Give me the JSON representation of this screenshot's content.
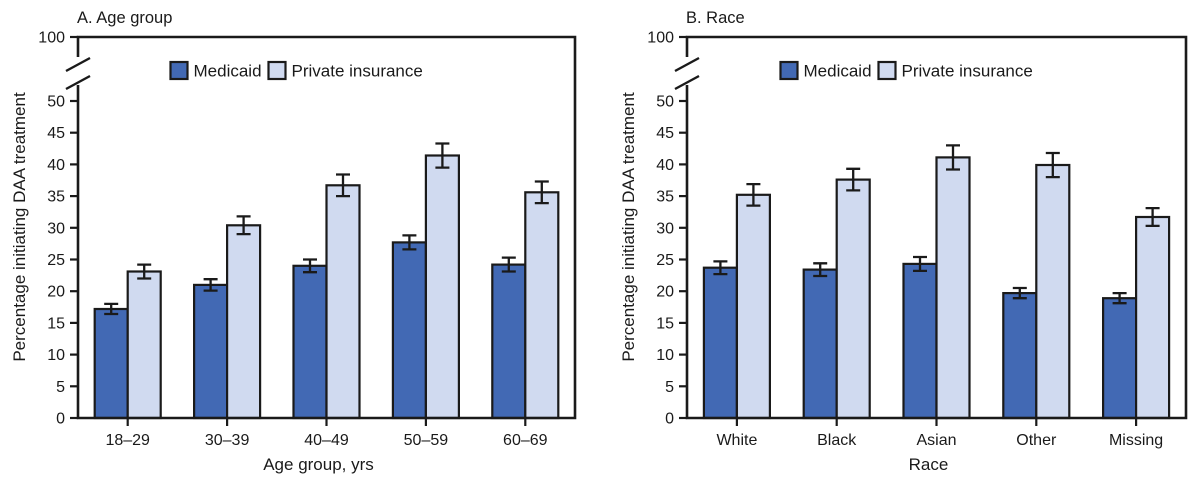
{
  "colors": {
    "medicaid": "#4269b4",
    "private_insurance": "#d0daf0",
    "axis": "#1a1a1a",
    "background": "#ffffff"
  },
  "chart_data": [
    {
      "type": "bar",
      "title": "A. Age group",
      "xlabel": "Age group, yrs",
      "ylabel": "Percentage initiating DAA treatment",
      "categories": [
        "18–29",
        "30–39",
        "40–49",
        "50–59",
        "60–69"
      ],
      "series": [
        {
          "name": "Medicaid",
          "color": "#4269b4",
          "values": [
            17.2,
            21.0,
            24.0,
            27.7,
            24.2
          ],
          "error_bars": [
            0.8,
            0.9,
            1.0,
            1.1,
            1.1
          ]
        },
        {
          "name": "Private insurance",
          "color": "#d0daf0",
          "values": [
            23.1,
            30.4,
            36.7,
            41.4,
            35.6
          ],
          "error_bars": [
            1.1,
            1.4,
            1.7,
            1.9,
            1.7
          ]
        }
      ],
      "ylim": [
        0,
        50
      ],
      "yticks": [
        0,
        5,
        10,
        15,
        20,
        25,
        30,
        35,
        40,
        45,
        50
      ],
      "y_axis_break": {
        "upper_tick": 100
      },
      "legend": [
        "Medicaid",
        "Private insurance"
      ],
      "legend_position": "top-center-inside",
      "grid": false
    },
    {
      "type": "bar",
      "title": "B. Race",
      "xlabel": "Race",
      "ylabel": "Percentage initiating DAA treatment",
      "categories": [
        "White",
        "Black",
        "Asian",
        "Other",
        "Missing"
      ],
      "series": [
        {
          "name": "Medicaid",
          "color": "#4269b4",
          "values": [
            23.7,
            23.4,
            24.3,
            19.7,
            18.9
          ],
          "error_bars": [
            1.0,
            1.0,
            1.1,
            0.8,
            0.8
          ]
        },
        {
          "name": "Private insurance",
          "color": "#d0daf0",
          "values": [
            35.2,
            37.6,
            41.1,
            39.9,
            31.7
          ],
          "error_bars": [
            1.7,
            1.7,
            1.9,
            1.9,
            1.4
          ]
        }
      ],
      "ylim": [
        0,
        50
      ],
      "yticks": [
        0,
        5,
        10,
        15,
        20,
        25,
        30,
        35,
        40,
        45,
        50
      ],
      "y_axis_break": {
        "upper_tick": 100
      },
      "legend": [
        "Medicaid",
        "Private insurance"
      ],
      "legend_position": "top-center-inside",
      "grid": false
    }
  ]
}
